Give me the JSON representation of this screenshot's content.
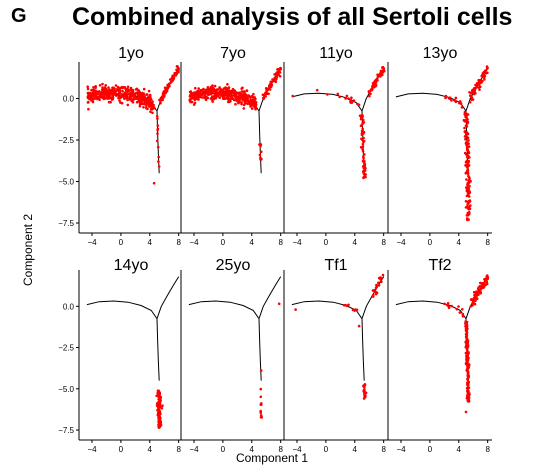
{
  "panel_label": "G",
  "chart_data": {
    "type": "scatter",
    "title": "Combined analysis of all Sertoli cells",
    "xlabel": "Component 1",
    "ylabel": "Component 2",
    "xlim": [
      -5.8,
      8.6
    ],
    "ylim": [
      -7.8,
      2.2
    ],
    "x_ticks": [
      "−4",
      "0",
      "4",
      "8"
    ],
    "y_ticks": [
      "0.0",
      "−2.5",
      "−5.0",
      "−7.5"
    ],
    "x_tick_values": [
      -4,
      0,
      4,
      8
    ],
    "y_tick_values": [
      0.0,
      -2.5,
      -5.0,
      -7.5
    ],
    "point_color": "#ff0000",
    "trajectory_color": "#000000",
    "trajectory": {
      "left_branch": [
        [
          -4.7,
          0.1
        ],
        [
          -3.0,
          0.28
        ],
        [
          -1.0,
          0.32
        ],
        [
          1.0,
          0.25
        ],
        [
          2.8,
          0.05
        ],
        [
          4.2,
          -0.25
        ],
        [
          5.0,
          -0.75
        ]
      ],
      "right_branch": [
        [
          5.0,
          -0.75
        ],
        [
          5.6,
          0.0
        ],
        [
          6.5,
          0.7
        ],
        [
          7.3,
          1.3
        ],
        [
          8.0,
          1.8
        ]
      ],
      "lower_branch": [
        [
          5.0,
          -0.75
        ],
        [
          5.1,
          -2.2
        ],
        [
          5.2,
          -3.4
        ],
        [
          5.3,
          -4.5
        ]
      ]
    },
    "panels": [
      {
        "label": "1yo",
        "clusters": [
          {
            "branch": "left",
            "x_range": [
              -4.6,
              4.6
            ],
            "n": 420,
            "spread": 0.22
          },
          {
            "branch": "right",
            "x_range": [
              5.4,
              8.0
            ],
            "n": 70,
            "spread": 0.12
          },
          {
            "branch": "lower",
            "y_range": [
              -1.0,
              -4.2
            ],
            "n": 10,
            "spread": 0.05
          }
        ],
        "points": [
          [
            5.2,
            -3.8
          ],
          [
            4.6,
            -5.1
          ]
        ]
      },
      {
        "label": "7yo",
        "clusters": [
          {
            "branch": "left",
            "x_range": [
              -4.6,
              4.6
            ],
            "n": 400,
            "spread": 0.22
          },
          {
            "branch": "right",
            "x_range": [
              5.4,
              8.0
            ],
            "n": 65,
            "spread": 0.12
          },
          {
            "branch": "lower",
            "y_range": [
              -2.4,
              -4.5
            ],
            "n": 10,
            "spread": 0.06
          }
        ],
        "points": []
      },
      {
        "label": "11yo",
        "clusters": [
          {
            "branch": "right",
            "x_range": [
              6.0,
              8.0
            ],
            "n": 55,
            "spread": 0.12
          },
          {
            "branch": "lower",
            "y_range": [
              -0.8,
              -4.9
            ],
            "n": 55,
            "spread": 0.12
          },
          {
            "branch": "left",
            "x_range": [
              1.5,
              4.7
            ],
            "n": 14,
            "spread": 0.12
          }
        ],
        "points": [
          [
            -4.6,
            0.15
          ],
          [
            -1.2,
            0.5
          ],
          [
            0.2,
            0.25
          ]
        ]
      },
      {
        "label": "13yo",
        "clusters": [
          {
            "branch": "right",
            "x_range": [
              5.6,
              8.0
            ],
            "n": 70,
            "spread": 0.15
          },
          {
            "branch": "lower",
            "y_range": [
              -0.8,
              -7.4
            ],
            "n": 150,
            "spread": 0.15
          },
          {
            "branch": "left",
            "x_range": [
              2.0,
              4.7
            ],
            "n": 12,
            "spread": 0.1
          }
        ],
        "points": [
          [
            2.8,
            0.05
          ],
          [
            3.6,
            -0.2
          ]
        ]
      },
      {
        "label": "14yo",
        "clusters": [
          {
            "branch": "lower",
            "y_range": [
              -5.1,
              -7.4
            ],
            "n": 110,
            "spread": 0.14
          }
        ],
        "points": []
      },
      {
        "label": "25yo",
        "clusters": [
          {
            "branch": "lower",
            "y_range": [
              -4.9,
              -6.8
            ],
            "n": 12,
            "spread": 0.06
          }
        ],
        "points": [
          [
            7.8,
            0.15
          ],
          [
            5.3,
            -3.9
          ]
        ]
      },
      {
        "label": "Tf1",
        "clusters": [
          {
            "branch": "right",
            "x_range": [
              6.5,
              8.0
            ],
            "n": 22,
            "spread": 0.2
          },
          {
            "branch": "lower",
            "y_range": [
              -4.7,
              -5.6
            ],
            "n": 22,
            "spread": 0.1
          },
          {
            "branch": "left",
            "x_range": [
              2.5,
              4.6
            ],
            "n": 8,
            "spread": 0.1
          }
        ],
        "points": [
          [
            -4.2,
            -0.2
          ],
          [
            4.6,
            -1.2
          ]
        ]
      },
      {
        "label": "Tf2",
        "clusters": [
          {
            "branch": "right",
            "x_range": [
              5.8,
              8.0
            ],
            "n": 90,
            "spread": 0.15
          },
          {
            "branch": "lower",
            "y_range": [
              -0.9,
              -5.8
            ],
            "n": 160,
            "spread": 0.1
          },
          {
            "branch": "left",
            "x_range": [
              2.0,
              4.7
            ],
            "n": 14,
            "spread": 0.1
          }
        ],
        "points": [
          [
            5.0,
            -6.4
          ]
        ]
      }
    ]
  }
}
